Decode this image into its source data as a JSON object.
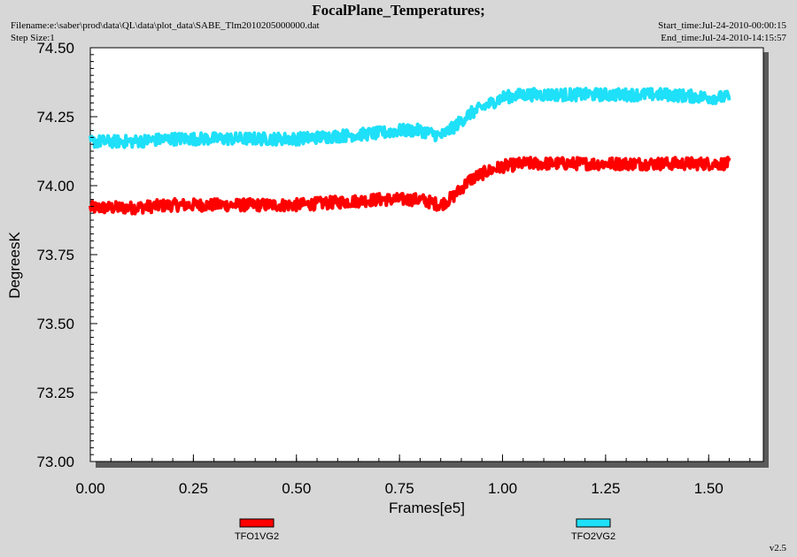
{
  "header": {
    "title": "FocalPlane_Temperatures;",
    "filename": "Filename:e:\\saber\\prod\\data\\QL\\data\\plot_data\\SABE_Tlm2010205000000.dat",
    "step_size": "Step Size:1",
    "start_time": "Start_time:Jul-24-2010-00:00:15",
    "end_time": "End_time:Jul-24-2010-14:15:57"
  },
  "footer": {
    "version": "v2.5"
  },
  "chart_data": {
    "type": "line",
    "xlabel": "Frames[e5]",
    "ylabel": "DegreesK",
    "xlim": [
      0,
      1.63
    ],
    "ylim": [
      73.0,
      74.5
    ],
    "xticks": [
      "0.00",
      "0.25",
      "0.50",
      "0.75",
      "1.00",
      "1.25",
      "1.50"
    ],
    "yticks": [
      "73.00",
      "73.25",
      "73.50",
      "73.75",
      "74.00",
      "74.25",
      "74.50"
    ],
    "grid": false,
    "legend_position": "bottom",
    "series": [
      {
        "name": "TFO1VG2",
        "color": "#ff0000",
        "x": [
          0.0,
          0.1,
          0.2,
          0.3,
          0.4,
          0.5,
          0.6,
          0.7,
          0.75,
          0.8,
          0.85,
          0.88,
          0.92,
          0.96,
          1.0,
          1.05,
          1.1,
          1.2,
          1.3,
          1.4,
          1.5,
          1.55
        ],
        "y": [
          73.92,
          73.92,
          73.93,
          73.93,
          73.93,
          73.93,
          73.94,
          73.95,
          73.95,
          73.95,
          73.93,
          73.96,
          74.02,
          74.05,
          74.07,
          74.08,
          74.08,
          74.08,
          74.08,
          74.08,
          74.08,
          74.08
        ]
      },
      {
        "name": "TFO2VG2",
        "color": "#1ee0f8",
        "x": [
          0.0,
          0.1,
          0.2,
          0.3,
          0.4,
          0.5,
          0.6,
          0.7,
          0.75,
          0.8,
          0.85,
          0.88,
          0.92,
          0.96,
          1.0,
          1.05,
          1.1,
          1.2,
          1.3,
          1.4,
          1.5,
          1.55
        ],
        "y": [
          74.16,
          74.16,
          74.17,
          74.17,
          74.17,
          74.17,
          74.18,
          74.19,
          74.2,
          74.2,
          74.18,
          74.21,
          74.26,
          74.29,
          74.32,
          74.33,
          74.33,
          74.33,
          74.33,
          74.33,
          74.32,
          74.32
        ]
      }
    ]
  }
}
